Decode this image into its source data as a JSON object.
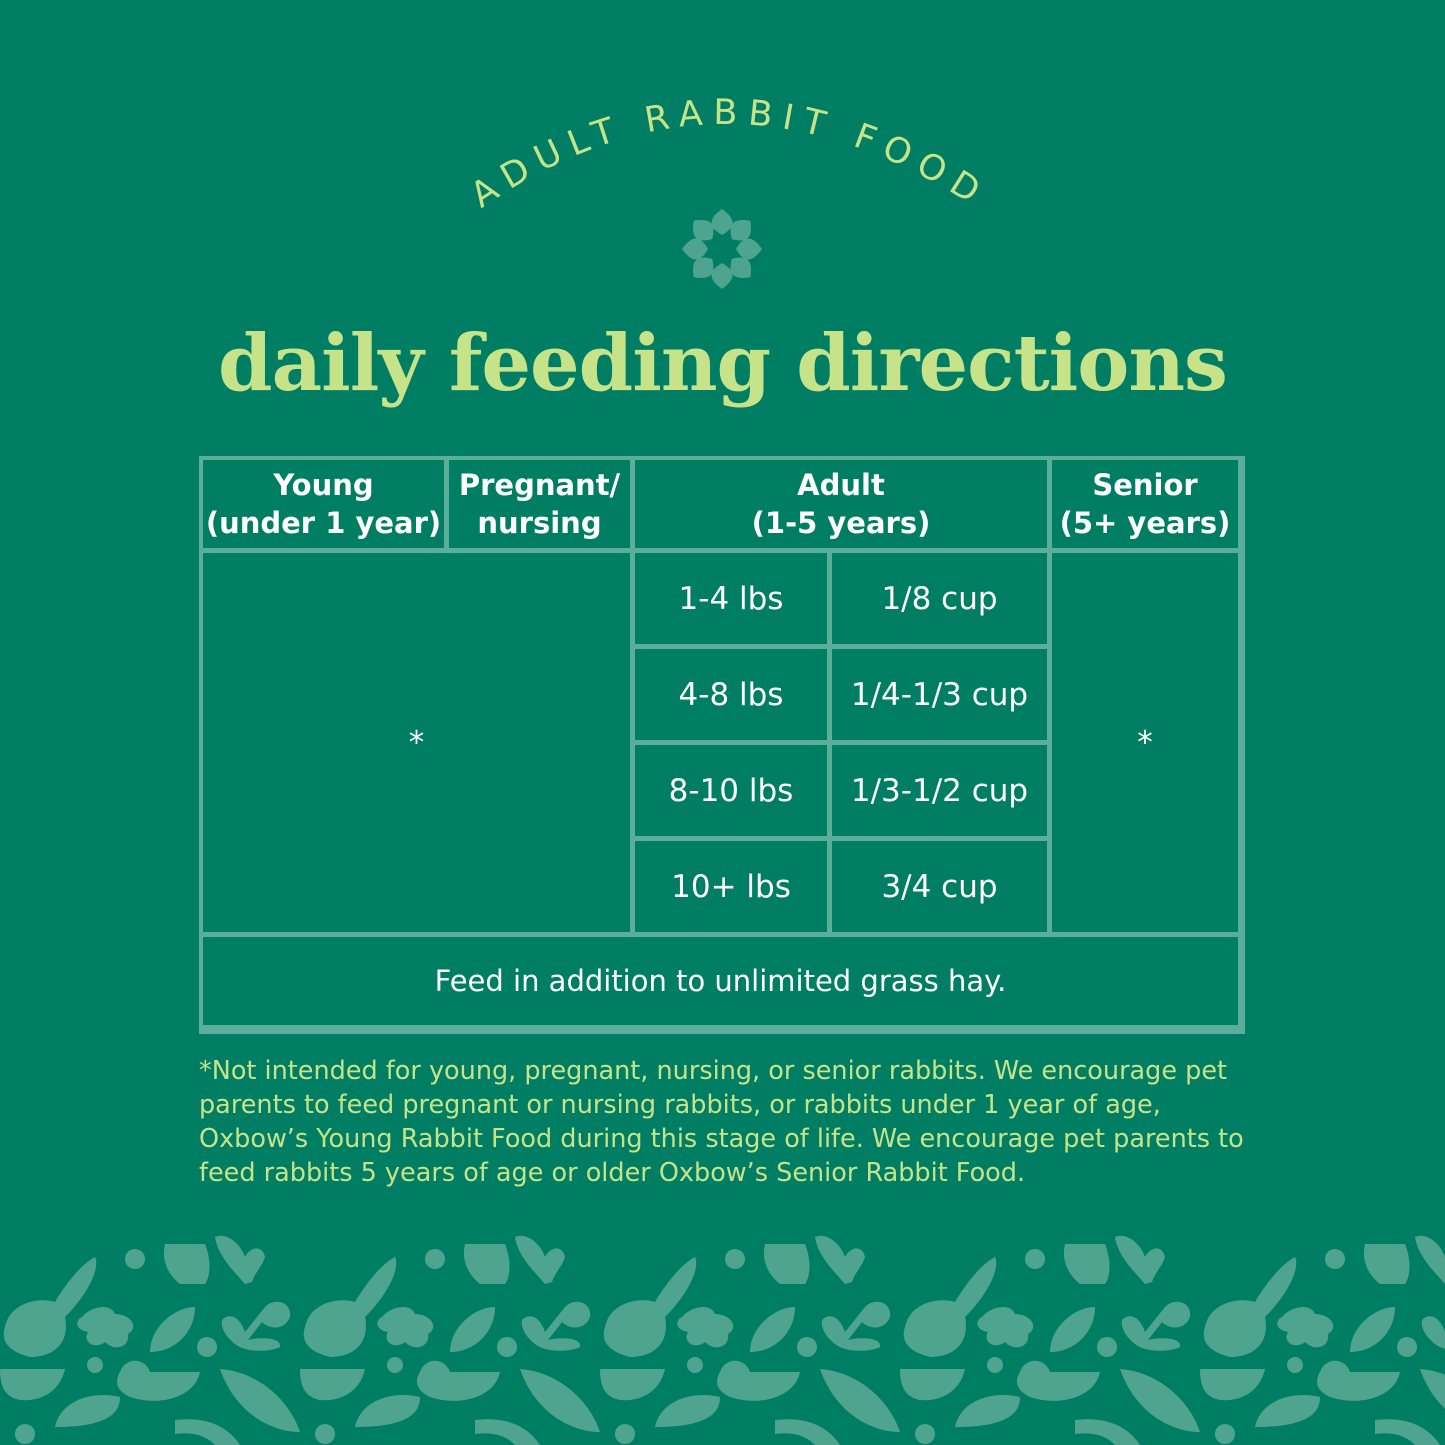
{
  "header": {
    "arc_label": "ADULT RABBIT FOOD",
    "title": "daily feeding directions"
  },
  "table": {
    "headers": [
      {
        "line1": "Young",
        "line2": "(under 1 year)"
      },
      {
        "line1": "Pregnant/",
        "line2": "nursing"
      },
      {
        "line1": "Adult",
        "line2": "(1-5 years)"
      },
      {
        "line1": "Senior",
        "line2": "(5+ years)"
      }
    ],
    "young_pregnant_value": "*",
    "senior_value": "*",
    "adult_rows": [
      {
        "weight": "1-4 lbs",
        "amount": "1/8 cup"
      },
      {
        "weight": "4-8 lbs",
        "amount": "1/4-1/3 cup"
      },
      {
        "weight": "8-10 lbs",
        "amount": "1/3-1/2 cup"
      },
      {
        "weight": "10+ lbs",
        "amount": "3/4 cup"
      }
    ],
    "footer": "Feed in addition to unlimited grass hay."
  },
  "footnote": "*Not intended for young, pregnant, nursing, or senior rabbits. We encourage pet parents to feed pregnant or nursing rabbits, or rabbits under 1 year of age, Oxbow’s Young Rabbit Food during this stage of life. We encourage pet parents to feed rabbits 5 years of age or older Oxbow’s Senior Rabbit Food.",
  "colors": {
    "background": "#007e64",
    "accent": "#c6e38a",
    "border": "#5aae9a",
    "pattern": "#4fa48f"
  },
  "icons": [
    "flower-icon",
    "rabbit-pattern"
  ]
}
